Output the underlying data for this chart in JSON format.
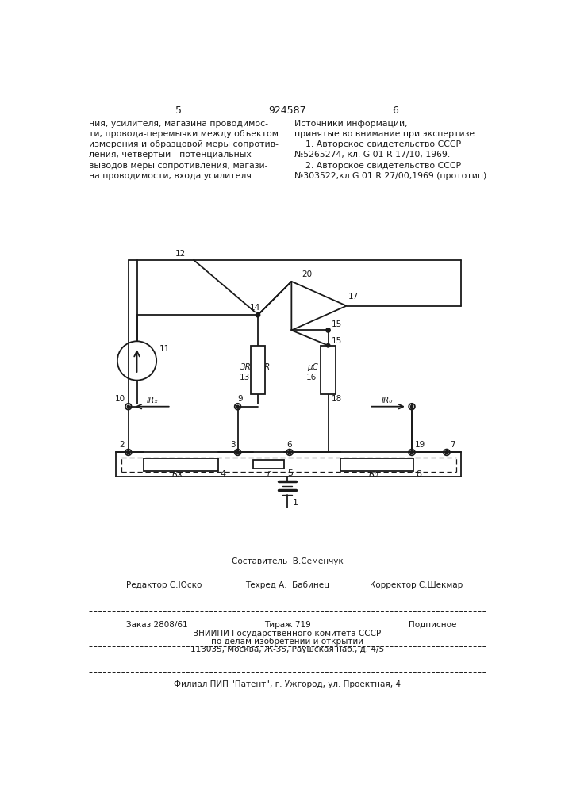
{
  "title_center": "924587",
  "page_left": "5",
  "page_right": "6",
  "text_left": "ния, усилителя, магазина проводимос-\nти, провода-перемычки между объектом\nизмерения и образцовой меры сопротив-\nления, четвертый - потенциальных\nвыводов меры сопротивления, магази-\nна проводимости, входа усилителя.",
  "text_right": "Источники информации,\nпринятые во внимание при экспертизе\n    1. Авторское свидетельство СССР\n№5265274, кл. G 01 R 17/10, 1969.\n    2. Авторское свидетельство СССР\n№303522,кл.G 01 R 27/00,1969 (прототип).",
  "footer_composer": "Составитель  В.Семенчук",
  "footer_editor": "Редактор С.Юско",
  "footer_tech": "Техред А.  Бабинец",
  "footer_corrector": "Корректор С.Шекмар",
  "footer_order": "Заказ 2808/61",
  "footer_tirazh": "Тираж 719",
  "footer_podp": "Подписное",
  "footer_vniip1": "ВНИИПИ Государственного комитета СССР",
  "footer_vniip2": "по делам изобретений и открытий",
  "footer_vniip3": "113035, Москва, Ж-35, Раушская наб., д. 4/5",
  "footer_filial": "Филиал ПИП \"Патент\", г. Ужгород, ул. Проектная, 4",
  "bg_color": "#ffffff",
  "line_color": "#1a1a1a"
}
